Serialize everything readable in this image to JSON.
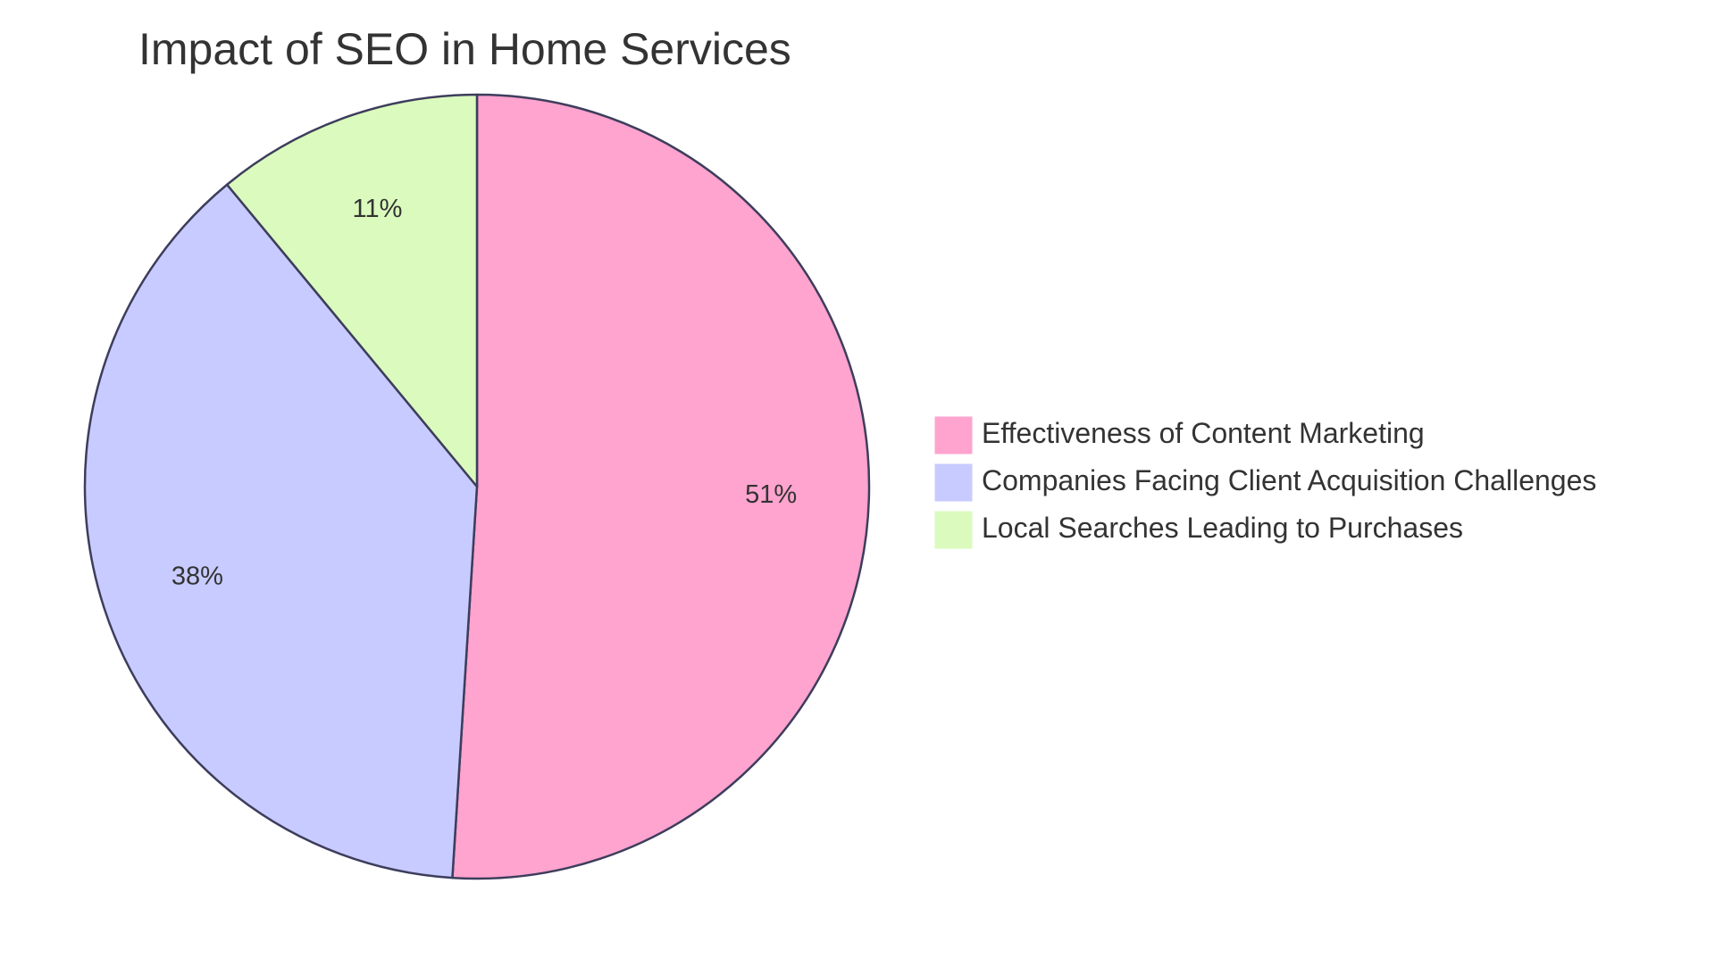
{
  "chart_data": {
    "type": "pie",
    "title": "Impact of SEO in Home Services",
    "legend_position": "right",
    "slices": [
      {
        "label": "Effectiveness of Content Marketing",
        "value": 51,
        "display": "51%",
        "color": "#ffa3cf"
      },
      {
        "label": "Companies Facing Client Acquisition Challenges",
        "value": 38,
        "display": "38%",
        "color": "#c8cbff"
      },
      {
        "label": "Local Searches Leading to Purchases",
        "value": 11,
        "display": "11%",
        "color": "#dafbbd"
      }
    ],
    "stroke_color": "#3d3d5c"
  }
}
